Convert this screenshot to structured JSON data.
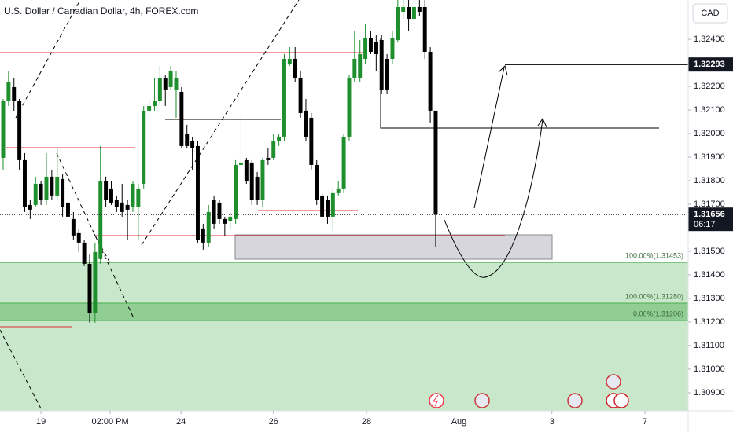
{
  "chart_data": {
    "type": "candlestick",
    "title": "U.S. Dollar / Canadian Dollar, 4h, FOREX.com",
    "currency": "CAD",
    "up_color": "#1e8f2c",
    "down_color": "#000000",
    "open": [
      1.31897,
      1.32137,
      1.32197,
      1.32137,
      1.31887,
      1.31697,
      1.31697,
      1.31787,
      1.31717,
      1.31817,
      1.31737,
      1.31807,
      1.31707,
      1.31637,
      1.31577,
      1.31537,
      1.31447,
      1.31237,
      1.31467,
      1.31797,
      1.31767,
      1.31717,
      1.31707,
      1.31697,
      1.31687,
      1.31687,
      1.31787,
      1.32097,
      1.32117,
      1.32137,
      1.32237,
      1.32197,
      1.32187,
      1.32177,
      1.31997,
      1.31967,
      1.31947,
      1.31597,
      1.31537,
      1.31717,
      1.31707,
      1.31637,
      1.31627,
      1.31637,
      1.31867,
      1.31887,
      1.31877,
      1.31817,
      1.31717,
      1.31897,
      1.31897,
      1.31967,
      1.31987,
      1.32297,
      1.32317,
      1.32237,
      1.32097,
      1.32067,
      1.31867,
      1.31737,
      1.31717,
      1.31647,
      1.31747,
      1.31767,
      1.31987,
      1.32237,
      1.32237,
      1.32317,
      1.32407,
      1.32387,
      1.32397,
      1.32317,
      1.32317,
      1.32397,
      1.32517,
      1.32537,
      1.32487,
      1.32537,
      1.32537,
      1.32347,
      1.32097
    ],
    "high": [
      1.32147,
      1.32267,
      1.32237,
      1.32147,
      1.31917,
      1.31717,
      1.31817,
      1.31797,
      1.31917,
      1.31847,
      1.31937,
      1.31827,
      1.31737,
      1.31667,
      1.31597,
      1.31547,
      1.31487,
      1.31537,
      1.31947,
      1.31817,
      1.31797,
      1.31737,
      1.31787,
      1.31717,
      1.31797,
      1.31787,
      1.32117,
      1.32147,
      1.32237,
      1.32287,
      1.32247,
      1.32287,
      1.32267,
      1.32197,
      1.32037,
      1.31987,
      1.31967,
      1.31617,
      1.31697,
      1.31737,
      1.31717,
      1.31647,
      1.31667,
      1.31887,
      1.32087,
      1.31897,
      1.31887,
      1.31837,
      1.31897,
      1.31937,
      1.31997,
      1.31997,
      1.32337,
      1.32367,
      1.32367,
      1.32267,
      1.32147,
      1.32087,
      1.31887,
      1.31747,
      1.31737,
      1.31767,
      1.31797,
      1.31997,
      1.32247,
      1.32437,
      1.32397,
      1.32467,
      1.32437,
      1.32417,
      1.32417,
      1.32337,
      1.32437,
      1.32567,
      1.32567,
      1.32567,
      1.32567,
      1.32567,
      1.32567,
      1.32367,
      1.32097
    ],
    "low": [
      1.31847,
      1.32117,
      1.32097,
      1.31847,
      1.31667,
      1.31637,
      1.31687,
      1.31697,
      1.31697,
      1.31717,
      1.31717,
      1.31647,
      1.31567,
      1.31547,
      1.31497,
      1.31437,
      1.31197,
      1.31197,
      1.31447,
      1.31687,
      1.31697,
      1.31667,
      1.31647,
      1.31547,
      1.31667,
      1.31547,
      1.31767,
      1.32087,
      1.32097,
      1.32117,
      1.32117,
      1.32187,
      1.32067,
      1.31937,
      1.31937,
      1.31847,
      1.31537,
      1.31507,
      1.31517,
      1.31597,
      1.31617,
      1.31567,
      1.31597,
      1.31617,
      1.31847,
      1.31787,
      1.31697,
      1.31697,
      1.31687,
      1.31867,
      1.31887,
      1.31947,
      1.31967,
      1.32287,
      1.32217,
      1.32067,
      1.31967,
      1.31847,
      1.31697,
      1.31637,
      1.31617,
      1.31587,
      1.31737,
      1.31747,
      1.31967,
      1.32217,
      1.32217,
      1.32297,
      1.32337,
      1.32267,
      1.32167,
      1.32167,
      1.32297,
      1.32387,
      1.32487,
      1.32437,
      1.32467,
      1.32497,
      1.32317,
      1.32047,
      1.31517
    ],
    "close": [
      1.32137,
      1.32217,
      1.32137,
      1.31887,
      1.31687,
      1.31677,
      1.31787,
      1.31717,
      1.31817,
      1.31737,
      1.31817,
      1.31687,
      1.31647,
      1.31567,
      1.31537,
      1.31447,
      1.31237,
      1.31497,
      1.31797,
      1.31717,
      1.31707,
      1.31687,
      1.31667,
      1.31677,
      1.31787,
      1.31767,
      1.32097,
      1.32117,
      1.32137,
      1.32237,
      1.32187,
      1.32267,
      1.32237,
      1.31947,
      1.31947,
      1.31937,
      1.31547,
      1.31537,
      1.31667,
      1.31617,
      1.31637,
      1.31617,
      1.31647,
      1.31867,
      1.31877,
      1.31797,
      1.31717,
      1.31717,
      1.31887,
      1.31887,
      1.31967,
      1.31987,
      1.32317,
      1.32317,
      1.32237,
      1.32087,
      1.31987,
      1.31867,
      1.31717,
      1.31647,
      1.31647,
      1.31747,
      1.31767,
      1.31987,
      1.32237,
      1.32317,
      1.32337,
      1.32407,
      1.32347,
      1.32337,
      1.32187,
      1.32187,
      1.32407,
      1.32537,
      1.32537,
      1.32487,
      1.32537,
      1.32517,
      1.32347,
      1.32097,
      1.31656
    ],
    "xlim": [
      -0.58,
      126.7
    ],
    "xticks": [
      {
        "value": 7,
        "label": "19"
      },
      {
        "value": 19.8,
        "label": "02:00 PM"
      },
      {
        "value": 32.9,
        "label": "24"
      },
      {
        "value": 50,
        "label": "26"
      },
      {
        "value": 67.2,
        "label": "28"
      },
      {
        "value": 84.3,
        "label": "Aug"
      },
      {
        "value": 101.5,
        "label": "3"
      },
      {
        "value": 118.7,
        "label": "7"
      }
    ],
    "ylim": [
      1.30823,
      1.32567
    ],
    "yticks": [
      {
        "value": 1.324,
        "label": "1.32400"
      },
      {
        "value": 1.322,
        "label": "1.32200"
      },
      {
        "value": 1.321,
        "label": "1.32100"
      },
      {
        "value": 1.32,
        "label": "1.32000"
      },
      {
        "value": 1.319,
        "label": "1.31900"
      },
      {
        "value": 1.318,
        "label": "1.31800"
      },
      {
        "value": 1.317,
        "label": "1.31700"
      },
      {
        "value": 1.315,
        "label": "1.31500"
      },
      {
        "value": 1.314,
        "label": "1.31400"
      },
      {
        "value": 1.313,
        "label": "1.31300"
      },
      {
        "value": 1.312,
        "label": "1.31200"
      },
      {
        "value": 1.311,
        "label": "1.31100"
      },
      {
        "value": 1.31,
        "label": "1.31000"
      },
      {
        "value": 1.309,
        "label": "1.30900"
      }
    ],
    "grid": false,
    "last_price": 1.31656,
    "countdown": "06:17",
    "target_price": 1.32293,
    "zones": [
      {
        "value": 1.31453,
        "label": "100.00%(1.31453)"
      },
      {
        "value": 1.3128,
        "label": "100.00%(1.31280)"
      },
      {
        "value": 1.31206,
        "label": "0.00%(1.31206)"
      }
    ]
  }
}
